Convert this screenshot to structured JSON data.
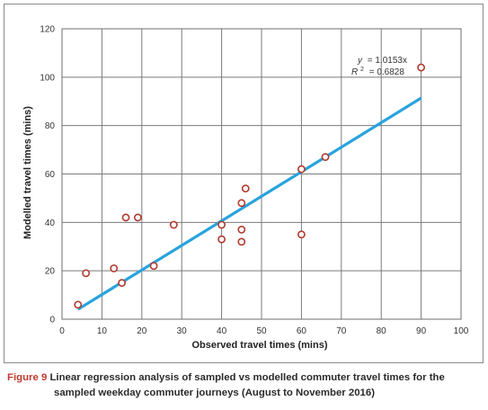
{
  "chart_data": {
    "type": "scatter",
    "title": "",
    "xlabel": "Observed travel times (mins)",
    "ylabel": "Modelled travel times (mins)",
    "xlim": [
      0,
      100
    ],
    "ylim": [
      0,
      120
    ],
    "x_ticks": [
      0,
      10,
      20,
      30,
      40,
      50,
      60,
      70,
      80,
      90,
      100
    ],
    "y_ticks": [
      0,
      20,
      40,
      60,
      80,
      100,
      120
    ],
    "grid": true,
    "series": [
      {
        "type": "scatter",
        "marker_color": "#b03a2e",
        "points": [
          {
            "x": 4,
            "y": 6
          },
          {
            "x": 6,
            "y": 19
          },
          {
            "x": 13,
            "y": 21
          },
          {
            "x": 15,
            "y": 15
          },
          {
            "x": 16,
            "y": 42
          },
          {
            "x": 19,
            "y": 42
          },
          {
            "x": 23,
            "y": 22
          },
          {
            "x": 28,
            "y": 39
          },
          {
            "x": 40,
            "y": 39
          },
          {
            "x": 40,
            "y": 33
          },
          {
            "x": 45,
            "y": 48
          },
          {
            "x": 45,
            "y": 37
          },
          {
            "x": 45,
            "y": 32
          },
          {
            "x": 46,
            "y": 54
          },
          {
            "x": 60,
            "y": 62
          },
          {
            "x": 60,
            "y": 35
          },
          {
            "x": 66,
            "y": 67
          },
          {
            "x": 90,
            "y": 104
          }
        ]
      },
      {
        "type": "line",
        "color": "#29a3dc",
        "points": [
          {
            "x": 4,
            "y": 4.06
          },
          {
            "x": 90,
            "y": 91.38
          }
        ]
      }
    ],
    "annotation": {
      "equation_var": "y",
      "equation_rhs": "= 1.0153x",
      "r2_var": "R",
      "r2_sup": "2",
      "r2_rhs": "= 0.6828"
    }
  },
  "caption": {
    "lead": "Figure 9",
    "line1": " Linear regression analysis of sampled vs modelled commuter travel times for the",
    "line2": "sampled weekday commuter journeys (August to November 2016)"
  }
}
